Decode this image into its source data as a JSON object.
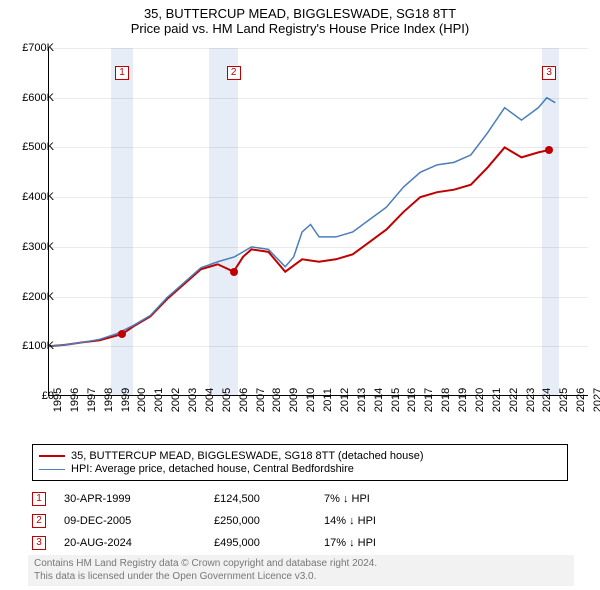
{
  "title": {
    "line1": "35, BUTTERCUP MEAD, BIGGLESWADE, SG18 8TT",
    "line2": "Price paid vs. HM Land Registry's House Price Index (HPI)"
  },
  "chart": {
    "type": "line",
    "x_min": 1995,
    "x_max": 2027,
    "x_tick_step": 1,
    "y_min": 0,
    "y_max": 700000,
    "y_tick_step": 100000,
    "y_tick_prefix": "£",
    "y_tick_suffix": "K",
    "background_color": "#ffffff",
    "grid_color": "#e8e8e8",
    "shaded_bands": [
      {
        "start": 1998.7,
        "end": 2000.0,
        "color": "#dce6f2"
      },
      {
        "start": 2004.5,
        "end": 2006.2,
        "color": "#dce6f2"
      },
      {
        "start": 2024.2,
        "end": 2025.2,
        "color": "#dce6f2"
      }
    ],
    "series": [
      {
        "name": "property",
        "label": "35, BUTTERCUP MEAD, BIGGLESWADE, SG18 8TT (detached house)",
        "color": "#c00000",
        "line_width": 2,
        "points": [
          [
            1995,
            100000
          ],
          [
            1996,
            103000
          ],
          [
            1997,
            108000
          ],
          [
            1998,
            112000
          ],
          [
            1999.33,
            124500
          ],
          [
            2000,
            140000
          ],
          [
            2001,
            160000
          ],
          [
            2002,
            195000
          ],
          [
            2003,
            225000
          ],
          [
            2004,
            255000
          ],
          [
            2005,
            265000
          ],
          [
            2005.94,
            250000
          ],
          [
            2006.5,
            280000
          ],
          [
            2007,
            295000
          ],
          [
            2008,
            290000
          ],
          [
            2009,
            250000
          ],
          [
            2010,
            275000
          ],
          [
            2011,
            270000
          ],
          [
            2012,
            275000
          ],
          [
            2013,
            285000
          ],
          [
            2014,
            310000
          ],
          [
            2015,
            335000
          ],
          [
            2016,
            370000
          ],
          [
            2017,
            400000
          ],
          [
            2018,
            410000
          ],
          [
            2019,
            415000
          ],
          [
            2020,
            425000
          ],
          [
            2021,
            460000
          ],
          [
            2022,
            500000
          ],
          [
            2023,
            480000
          ],
          [
            2024,
            490000
          ],
          [
            2024.64,
            495000
          ]
        ]
      },
      {
        "name": "hpi",
        "label": "HPI: Average price, detached house, Central Bedfordshire",
        "color": "#4a7ebb",
        "line_width": 1.5,
        "points": [
          [
            1995,
            100000
          ],
          [
            1996,
            103000
          ],
          [
            1997,
            108000
          ],
          [
            1998,
            114000
          ],
          [
            1999,
            125000
          ],
          [
            2000,
            142000
          ],
          [
            2001,
            162000
          ],
          [
            2002,
            198000
          ],
          [
            2003,
            228000
          ],
          [
            2004,
            258000
          ],
          [
            2005,
            270000
          ],
          [
            2006,
            280000
          ],
          [
            2007,
            300000
          ],
          [
            2008,
            295000
          ],
          [
            2009,
            260000
          ],
          [
            2009.5,
            280000
          ],
          [
            2010,
            330000
          ],
          [
            2010.5,
            345000
          ],
          [
            2011,
            320000
          ],
          [
            2012,
            320000
          ],
          [
            2013,
            330000
          ],
          [
            2014,
            355000
          ],
          [
            2015,
            380000
          ],
          [
            2016,
            420000
          ],
          [
            2017,
            450000
          ],
          [
            2018,
            465000
          ],
          [
            2019,
            470000
          ],
          [
            2020,
            485000
          ],
          [
            2021,
            530000
          ],
          [
            2022,
            580000
          ],
          [
            2023,
            555000
          ],
          [
            2024,
            580000
          ],
          [
            2024.5,
            600000
          ],
          [
            2025,
            590000
          ]
        ]
      }
    ],
    "sale_markers": [
      {
        "id": "1",
        "year": 1999.33,
        "price": 124500,
        "box_y": 66,
        "color": "#c00000"
      },
      {
        "id": "2",
        "year": 2005.94,
        "price": 250000,
        "box_y": 66,
        "color": "#c00000"
      },
      {
        "id": "3",
        "year": 2024.64,
        "price": 495000,
        "box_y": 66,
        "color": "#c00000"
      }
    ]
  },
  "legend": {
    "rows": [
      {
        "color": "#c00000",
        "text": "35, BUTTERCUP MEAD, BIGGLESWADE, SG18 8TT (detached house)"
      },
      {
        "color": "#4a7ebb",
        "text": "HPI: Average price, detached house, Central Bedfordshire"
      }
    ]
  },
  "sales_table": {
    "rows": [
      {
        "id": "1",
        "date": "30-APR-1999",
        "price": "£124,500",
        "diff": "7% ↓ HPI"
      },
      {
        "id": "2",
        "date": "09-DEC-2005",
        "price": "£250,000",
        "diff": "14% ↓ HPI"
      },
      {
        "id": "3",
        "date": "20-AUG-2024",
        "price": "£495,000",
        "diff": "17% ↓ HPI"
      }
    ]
  },
  "footer": {
    "line1": "Contains HM Land Registry data © Crown copyright and database right 2024.",
    "line2": "This data is licensed under the Open Government Licence v3.0."
  }
}
